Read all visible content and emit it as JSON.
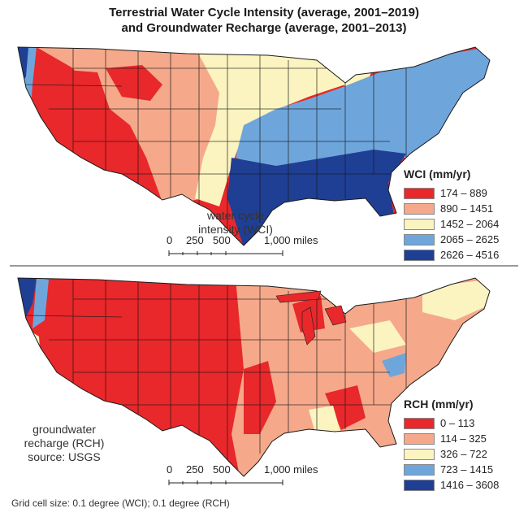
{
  "title": {
    "line1": "Terrestrial Water Cycle Intensity (average, 2001–2019)",
    "line2": "and Groundwater Recharge (average, 2001–2013)"
  },
  "wci": {
    "label_line1": "water cycle",
    "label_line2": "intensity (WCI)",
    "legend_title": "WCI (mm/yr)",
    "classes": [
      {
        "range": "174 – 889",
        "color": "#e8282b"
      },
      {
        "range": "890 – 1451",
        "color": "#f5a98a"
      },
      {
        "range": "1452 – 2064",
        "color": "#fbf4c0"
      },
      {
        "range": "2065 – 2625",
        "color": "#6ea6dc"
      },
      {
        "range": "2626 – 4516",
        "color": "#1f3f95"
      }
    ]
  },
  "rch": {
    "label_line1": "groundwater",
    "label_line2": "recharge (RCH)",
    "label_line3": "source: USGS",
    "legend_title": "RCH (mm/yr)",
    "classes": [
      {
        "range": "0 – 113",
        "color": "#e8282b"
      },
      {
        "range": "114 – 325",
        "color": "#f5a98a"
      },
      {
        "range": "326 – 722",
        "color": "#fbf4c0"
      },
      {
        "range": "723 – 1415",
        "color": "#6ea6dc"
      },
      {
        "range": "1416 – 3608",
        "color": "#1f3f95"
      }
    ]
  },
  "scale_bar": {
    "ticks": [
      "0",
      "250",
      "500",
      "1,000 miles"
    ]
  },
  "footer": "Grid cell size: 0.1 degree (WCI); 0.1 degree (RCH)"
}
